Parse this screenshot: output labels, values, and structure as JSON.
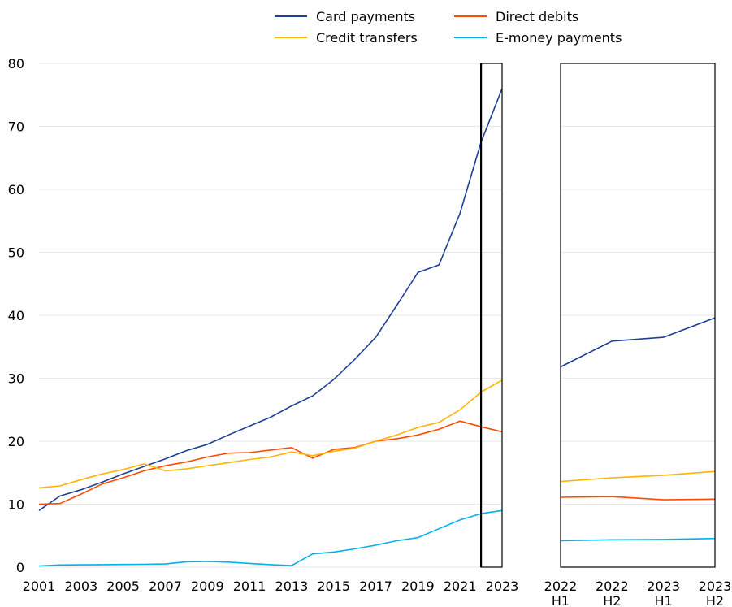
{
  "chart_data": {
    "type": "line",
    "legend": {
      "placement": "top",
      "entries": [
        {
          "label": "Card payments",
          "color": "#1f3f95"
        },
        {
          "label": "Direct debits",
          "color": "#ff4b00"
        },
        {
          "label": "Credit transfers",
          "color": "#ffb400"
        },
        {
          "label": "E-money payments",
          "color": "#00b1ea"
        }
      ]
    },
    "ylim": [
      0,
      80
    ],
    "yticks": [
      0,
      10,
      20,
      30,
      40,
      50,
      60,
      70,
      80
    ],
    "grid": true,
    "panels": [
      {
        "name": "annual",
        "x": [
          2001,
          2002,
          2003,
          2004,
          2005,
          2006,
          2007,
          2008,
          2009,
          2010,
          2011,
          2012,
          2013,
          2014,
          2015,
          2016,
          2017,
          2018,
          2019,
          2020,
          2021,
          2022,
          2023
        ],
        "xticks": [
          2001,
          2003,
          2005,
          2007,
          2009,
          2011,
          2013,
          2015,
          2017,
          2019,
          2021,
          2023
        ],
        "highlight": {
          "from": 2022,
          "to": 2023
        },
        "series": [
          {
            "name": "Card payments",
            "color": "#1f3f95",
            "values": [
              9.0,
              11.3,
              12.3,
              13.5,
              14.8,
              16.0,
              17.2,
              18.5,
              19.5,
              21.0,
              22.4,
              23.8,
              25.6,
              27.2,
              29.8,
              33.0,
              36.5,
              41.6,
              46.8,
              48.0,
              56.2,
              67.5,
              76.0
            ]
          },
          {
            "name": "Direct debits",
            "color": "#ff4b00",
            "values": [
              10.0,
              10.1,
              11.6,
              13.2,
              14.2,
              15.3,
              16.1,
              16.7,
              17.5,
              18.1,
              18.2,
              18.6,
              19.0,
              17.3,
              18.7,
              19.0,
              20.0,
              20.4,
              21.0,
              21.9,
              23.2,
              22.3,
              21.5
            ]
          },
          {
            "name": "Credit transfers",
            "color": "#ffb400",
            "values": [
              12.6,
              12.9,
              13.9,
              14.8,
              15.5,
              16.4,
              15.3,
              15.6,
              16.1,
              16.6,
              17.1,
              17.5,
              18.3,
              17.7,
              18.4,
              18.9,
              20.0,
              21.0,
              22.2,
              23.0,
              25.0,
              27.8,
              29.7
            ]
          },
          {
            "name": "E-money payments",
            "color": "#00b1ea",
            "values": [
              0.2,
              0.35,
              0.37,
              0.4,
              0.43,
              0.45,
              0.5,
              0.85,
              0.9,
              0.8,
              0.6,
              0.4,
              0.25,
              2.1,
              2.4,
              2.9,
              3.5,
              4.2,
              4.7,
              6.1,
              7.5,
              8.5,
              9.0
            ]
          }
        ]
      },
      {
        "name": "half-yearly",
        "categories": [
          {
            "year": "2022",
            "half": "H1"
          },
          {
            "year": "2022",
            "half": "H2"
          },
          {
            "year": "2023",
            "half": "H1"
          },
          {
            "year": "2023",
            "half": "H2"
          }
        ],
        "series": [
          {
            "name": "Card payments",
            "color": "#1f3f95",
            "values": [
              31.8,
              35.9,
              36.5,
              39.6
            ]
          },
          {
            "name": "Direct debits",
            "color": "#ff4b00",
            "values": [
              11.1,
              11.2,
              10.7,
              10.8
            ]
          },
          {
            "name": "Credit transfers",
            "color": "#ffb400",
            "values": [
              13.6,
              14.2,
              14.6,
              15.2
            ]
          },
          {
            "name": "E-money payments",
            "color": "#00b1ea",
            "values": [
              4.2,
              4.35,
              4.4,
              4.55
            ]
          }
        ]
      }
    ]
  }
}
